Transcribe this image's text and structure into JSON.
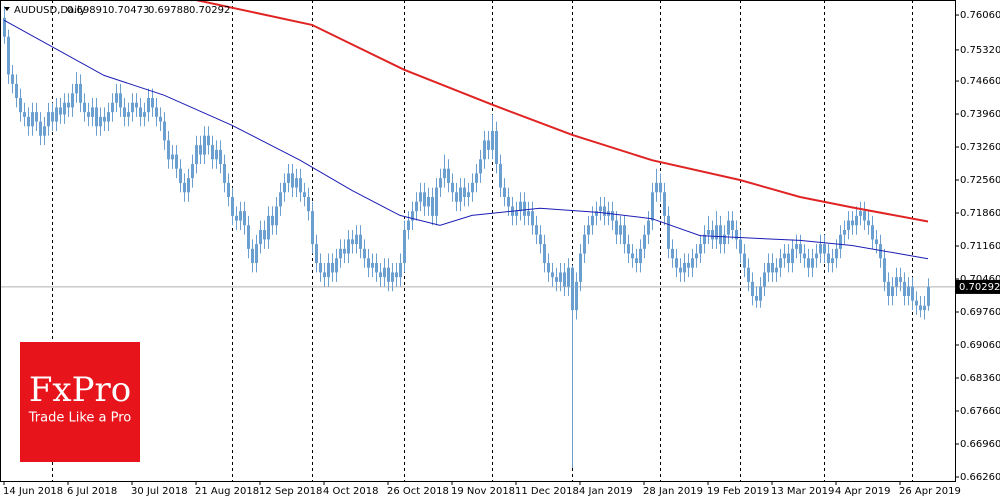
{
  "chart_data": {
    "type": "candlestick",
    "title": "AUDUSD,Daily",
    "color": "#6a9fd0",
    "xlim": [
      -1,
      237.75
    ],
    "ylim": [
      0.66175,
      0.76379
    ],
    "yticks": [
      {
        "value": 0.7606,
        "label": "0.76060"
      },
      {
        "value": 0.7532,
        "label": "0.75320"
      },
      {
        "value": 0.7466,
        "label": "0.74660"
      },
      {
        "value": 0.7396,
        "label": "0.73960"
      },
      {
        "value": 0.7326,
        "label": "0.73260"
      },
      {
        "value": 0.7256,
        "label": "0.72560"
      },
      {
        "value": 0.7186,
        "label": "0.71860"
      },
      {
        "value": 0.7116,
        "label": "0.71160"
      },
      {
        "value": 0.7046,
        "label": "0.70460"
      },
      {
        "value": 0.6976,
        "label": "0.69760"
      },
      {
        "value": 0.6906,
        "label": "0.69060"
      },
      {
        "value": 0.6836,
        "label": "0.68360"
      },
      {
        "value": 0.6766,
        "label": "0.67660"
      },
      {
        "value": 0.6696,
        "label": "0.66960"
      },
      {
        "value": 0.6626,
        "label": "0.66260"
      }
    ],
    "xticks": [
      {
        "value": 0,
        "label": "14 Jun 2018"
      },
      {
        "value": 16,
        "label": "6 Jul 2018"
      },
      {
        "value": 32,
        "label": "30 Jul 2018"
      },
      {
        "value": 48,
        "label": "21 Aug 2018"
      },
      {
        "value": 64,
        "label": "12 Sep 2018"
      },
      {
        "value": 80,
        "label": "4 Oct 2018"
      },
      {
        "value": 96,
        "label": "26 Oct 2018"
      },
      {
        "value": 112,
        "label": "19 Nov 2018"
      },
      {
        "value": 128,
        "label": "11 Dec 2018"
      },
      {
        "value": 144,
        "label": "4 Jan 2019"
      },
      {
        "value": 160,
        "label": "28 Jan 2019"
      },
      {
        "value": 176,
        "label": "19 Feb 2019"
      },
      {
        "value": 192,
        "label": "13 Mar 2019"
      },
      {
        "value": 208,
        "label": "4 Apr 2019"
      },
      {
        "value": 224,
        "label": "26 Apr 2019"
      }
    ],
    "vertical_lines": [
      12,
      57,
      77,
      100,
      122,
      142,
      164,
      184,
      205,
      227
    ],
    "open": [
      0.76,
      0.756,
      0.748,
      0.746,
      0.743,
      0.74,
      0.739,
      0.737,
      0.74,
      0.738,
      0.735,
      0.737,
      0.74,
      0.738,
      0.741,
      0.7395,
      0.742,
      0.741,
      0.744,
      0.746,
      0.742,
      0.74,
      0.739,
      0.741,
      0.737,
      0.739,
      0.738,
      0.74,
      0.742,
      0.744,
      0.741,
      0.739,
      0.74,
      0.742,
      0.741,
      0.739,
      0.74,
      0.743,
      0.741,
      0.739,
      0.738,
      0.734,
      0.73,
      0.731,
      0.728,
      0.725,
      0.723,
      0.726,
      0.729,
      0.733,
      0.731,
      0.735,
      0.733,
      0.73,
      0.732,
      0.729,
      0.725,
      0.722,
      0.718,
      0.717,
      0.719,
      0.716,
      0.711,
      0.708,
      0.712,
      0.715,
      0.713,
      0.718,
      0.716,
      0.72,
      0.723,
      0.725,
      0.727,
      0.724,
      0.726,
      0.723,
      0.722,
      0.719,
      0.712,
      0.708,
      0.706,
      0.705,
      0.708,
      0.706,
      0.709,
      0.711,
      0.71,
      0.713,
      0.712,
      0.714,
      0.711,
      0.709,
      0.707,
      0.708,
      0.706,
      0.705,
      0.707,
      0.704,
      0.706,
      0.705,
      0.708,
      0.715,
      0.717,
      0.719,
      0.721,
      0.723,
      0.72,
      0.722,
      0.718,
      0.724,
      0.726,
      0.728,
      0.725,
      0.723,
      0.721,
      0.724,
      0.722,
      0.723,
      0.725,
      0.727,
      0.73,
      0.734,
      0.732,
      0.736,
      0.729,
      0.724,
      0.722,
      0.72,
      0.718,
      0.719,
      0.721,
      0.718,
      0.719,
      0.716,
      0.714,
      0.712,
      0.708,
      0.706,
      0.705,
      0.704,
      0.706,
      0.703,
      0.707,
      0.698,
      0.704,
      0.71,
      0.714,
      0.716,
      0.718,
      0.719,
      0.72,
      0.718,
      0.719,
      0.717,
      0.714,
      0.716,
      0.712,
      0.71,
      0.709,
      0.708,
      0.711,
      0.714,
      0.717,
      0.723,
      0.725,
      0.723,
      0.718,
      0.711,
      0.709,
      0.707,
      0.706,
      0.708,
      0.707,
      0.709,
      0.71,
      0.712,
      0.714,
      0.715,
      0.713,
      0.716,
      0.712,
      0.714,
      0.717,
      0.715,
      0.713,
      0.71,
      0.707,
      0.704,
      0.701,
      0.7,
      0.703,
      0.706,
      0.708,
      0.706,
      0.707,
      0.709,
      0.71,
      0.708,
      0.711,
      0.712,
      0.71,
      0.709,
      0.707,
      0.709,
      0.71,
      0.712,
      0.71,
      0.708,
      0.709,
      0.711,
      0.714,
      0.715,
      0.717,
      0.716,
      0.718,
      0.719,
      0.717,
      0.716,
      0.713,
      0.712,
      0.709,
      0.704,
      0.701,
      0.703,
      0.705,
      0.704,
      0.701,
      0.703,
      0.7,
      0.699,
      0.698,
      0.69891
    ],
    "high": [
      0.7625,
      0.7575,
      0.75,
      0.748,
      0.745,
      0.742,
      0.741,
      0.742,
      0.742,
      0.74,
      0.739,
      0.742,
      0.742,
      0.743,
      0.743,
      0.744,
      0.744,
      0.746,
      0.7485,
      0.748,
      0.744,
      0.742,
      0.743,
      0.743,
      0.741,
      0.741,
      0.742,
      0.744,
      0.746,
      0.746,
      0.743,
      0.742,
      0.744,
      0.744,
      0.743,
      0.742,
      0.745,
      0.745,
      0.743,
      0.741,
      0.74,
      0.736,
      0.733,
      0.733,
      0.73,
      0.727,
      0.728,
      0.731,
      0.735,
      0.735,
      0.737,
      0.737,
      0.735,
      0.734,
      0.734,
      0.731,
      0.727,
      0.724,
      0.72,
      0.721,
      0.721,
      0.718,
      0.713,
      0.714,
      0.717,
      0.717,
      0.72,
      0.72,
      0.722,
      0.725,
      0.727,
      0.729,
      0.729,
      0.728,
      0.728,
      0.725,
      0.724,
      0.721,
      0.714,
      0.71,
      0.708,
      0.71,
      0.71,
      0.711,
      0.713,
      0.713,
      0.715,
      0.715,
      0.716,
      0.716,
      0.713,
      0.711,
      0.71,
      0.71,
      0.708,
      0.709,
      0.709,
      0.708,
      0.708,
      0.71,
      0.717,
      0.719,
      0.721,
      0.723,
      0.725,
      0.725,
      0.724,
      0.724,
      0.726,
      0.728,
      0.731,
      0.73,
      0.727,
      0.725,
      0.726,
      0.726,
      0.725,
      0.727,
      0.729,
      0.732,
      0.736,
      0.736,
      0.7395,
      0.738,
      0.731,
      0.726,
      0.724,
      0.722,
      0.721,
      0.723,
      0.723,
      0.721,
      0.721,
      0.718,
      0.716,
      0.714,
      0.71,
      0.708,
      0.707,
      0.708,
      0.708,
      0.709,
      0.7075,
      0.706,
      0.712,
      0.716,
      0.718,
      0.72,
      0.721,
      0.722,
      0.722,
      0.721,
      0.721,
      0.719,
      0.718,
      0.718,
      0.714,
      0.712,
      0.711,
      0.713,
      0.716,
      0.719,
      0.725,
      0.728,
      0.727,
      0.725,
      0.72,
      0.713,
      0.711,
      0.709,
      0.71,
      0.71,
      0.711,
      0.712,
      0.714,
      0.716,
      0.718,
      0.717,
      0.719,
      0.718,
      0.716,
      0.719,
      0.719,
      0.717,
      0.715,
      0.712,
      0.709,
      0.706,
      0.703,
      0.705,
      0.708,
      0.71,
      0.71,
      0.709,
      0.711,
      0.712,
      0.712,
      0.713,
      0.714,
      0.714,
      0.712,
      0.711,
      0.711,
      0.712,
      0.714,
      0.714,
      0.712,
      0.711,
      0.713,
      0.716,
      0.717,
      0.719,
      0.719,
      0.72,
      0.721,
      0.721,
      0.719,
      0.718,
      0.715,
      0.714,
      0.711,
      0.706,
      0.705,
      0.707,
      0.707,
      0.706,
      0.705,
      0.705,
      0.702,
      0.701,
      0.701,
      0.70473
    ],
    "low": [
      0.7545,
      0.746,
      0.744,
      0.741,
      0.738,
      0.737,
      0.735,
      0.735,
      0.736,
      0.733,
      0.733,
      0.735,
      0.736,
      0.736,
      0.7375,
      0.7375,
      0.739,
      0.739,
      0.742,
      0.74,
      0.738,
      0.737,
      0.737,
      0.735,
      0.735,
      0.736,
      0.736,
      0.738,
      0.74,
      0.739,
      0.737,
      0.737,
      0.738,
      0.739,
      0.737,
      0.737,
      0.738,
      0.739,
      0.737,
      0.736,
      0.732,
      0.728,
      0.728,
      0.726,
      0.723,
      0.721,
      0.721,
      0.724,
      0.727,
      0.729,
      0.729,
      0.731,
      0.728,
      0.728,
      0.727,
      0.723,
      0.72,
      0.716,
      0.715,
      0.715,
      0.714,
      0.709,
      0.706,
      0.706,
      0.71,
      0.711,
      0.711,
      0.714,
      0.714,
      0.718,
      0.721,
      0.723,
      0.722,
      0.722,
      0.721,
      0.72,
      0.717,
      0.71,
      0.706,
      0.704,
      0.703,
      0.703,
      0.704,
      0.704,
      0.707,
      0.708,
      0.708,
      0.71,
      0.71,
      0.709,
      0.707,
      0.705,
      0.705,
      0.704,
      0.703,
      0.703,
      0.702,
      0.702,
      0.703,
      0.703,
      0.706,
      0.713,
      0.715,
      0.717,
      0.719,
      0.718,
      0.718,
      0.716,
      0.716,
      0.722,
      0.724,
      0.723,
      0.721,
      0.719,
      0.719,
      0.72,
      0.72,
      0.721,
      0.723,
      0.725,
      0.728,
      0.73,
      0.73,
      0.727,
      0.722,
      0.72,
      0.718,
      0.716,
      0.716,
      0.717,
      0.716,
      0.716,
      0.714,
      0.712,
      0.71,
      0.706,
      0.704,
      0.703,
      0.702,
      0.702,
      0.701,
      0.701,
      0.6645,
      0.696,
      0.702,
      0.708,
      0.712,
      0.714,
      0.716,
      0.717,
      0.716,
      0.716,
      0.715,
      0.712,
      0.712,
      0.71,
      0.708,
      0.707,
      0.706,
      0.706,
      0.709,
      0.712,
      0.715,
      0.721,
      0.721,
      0.716,
      0.709,
      0.707,
      0.705,
      0.704,
      0.704,
      0.705,
      0.705,
      0.707,
      0.708,
      0.71,
      0.712,
      0.711,
      0.711,
      0.71,
      0.71,
      0.712,
      0.713,
      0.711,
      0.708,
      0.705,
      0.702,
      0.699,
      0.6985,
      0.6985,
      0.701,
      0.704,
      0.704,
      0.704,
      0.705,
      0.707,
      0.706,
      0.706,
      0.709,
      0.708,
      0.707,
      0.705,
      0.705,
      0.707,
      0.708,
      0.708,
      0.706,
      0.706,
      0.707,
      0.709,
      0.712,
      0.713,
      0.714,
      0.714,
      0.716,
      0.715,
      0.714,
      0.711,
      0.71,
      0.707,
      0.702,
      0.699,
      0.699,
      0.701,
      0.702,
      0.699,
      0.699,
      0.698,
      0.697,
      0.6965,
      0.696,
      0.69788
    ],
    "close": [
      0.756,
      0.748,
      0.746,
      0.743,
      0.74,
      0.739,
      0.737,
      0.74,
      0.738,
      0.735,
      0.737,
      0.74,
      0.738,
      0.741,
      0.7395,
      0.742,
      0.741,
      0.744,
      0.746,
      0.742,
      0.74,
      0.739,
      0.741,
      0.737,
      0.739,
      0.738,
      0.74,
      0.742,
      0.744,
      0.741,
      0.739,
      0.74,
      0.742,
      0.741,
      0.739,
      0.74,
      0.743,
      0.741,
      0.739,
      0.738,
      0.734,
      0.73,
      0.731,
      0.728,
      0.725,
      0.723,
      0.726,
      0.729,
      0.733,
      0.731,
      0.735,
      0.733,
      0.73,
      0.732,
      0.729,
      0.725,
      0.722,
      0.718,
      0.717,
      0.719,
      0.716,
      0.711,
      0.708,
      0.712,
      0.715,
      0.713,
      0.718,
      0.716,
      0.72,
      0.723,
      0.725,
      0.727,
      0.724,
      0.726,
      0.723,
      0.722,
      0.719,
      0.712,
      0.708,
      0.706,
      0.705,
      0.708,
      0.706,
      0.709,
      0.711,
      0.71,
      0.713,
      0.712,
      0.714,
      0.711,
      0.709,
      0.707,
      0.708,
      0.706,
      0.705,
      0.707,
      0.704,
      0.706,
      0.705,
      0.708,
      0.715,
      0.717,
      0.719,
      0.721,
      0.723,
      0.72,
      0.722,
      0.718,
      0.724,
      0.726,
      0.728,
      0.725,
      0.723,
      0.721,
      0.724,
      0.722,
      0.723,
      0.725,
      0.727,
      0.73,
      0.734,
      0.732,
      0.736,
      0.729,
      0.724,
      0.722,
      0.72,
      0.718,
      0.719,
      0.721,
      0.718,
      0.719,
      0.716,
      0.714,
      0.712,
      0.708,
      0.706,
      0.705,
      0.704,
      0.706,
      0.703,
      0.707,
      0.698,
      0.704,
      0.71,
      0.714,
      0.716,
      0.718,
      0.719,
      0.72,
      0.718,
      0.719,
      0.717,
      0.714,
      0.716,
      0.712,
      0.71,
      0.709,
      0.708,
      0.711,
      0.714,
      0.717,
      0.723,
      0.725,
      0.723,
      0.718,
      0.711,
      0.709,
      0.707,
      0.706,
      0.708,
      0.707,
      0.709,
      0.71,
      0.712,
      0.714,
      0.715,
      0.713,
      0.716,
      0.712,
      0.714,
      0.717,
      0.715,
      0.713,
      0.71,
      0.707,
      0.704,
      0.701,
      0.7,
      0.703,
      0.706,
      0.708,
      0.706,
      0.707,
      0.709,
      0.71,
      0.708,
      0.711,
      0.712,
      0.71,
      0.709,
      0.707,
      0.709,
      0.71,
      0.712,
      0.71,
      0.708,
      0.709,
      0.711,
      0.714,
      0.715,
      0.717,
      0.716,
      0.718,
      0.719,
      0.717,
      0.716,
      0.713,
      0.712,
      0.709,
      0.704,
      0.701,
      0.703,
      0.705,
      0.704,
      0.701,
      0.703,
      0.7,
      0.699,
      0.698,
      0.69891,
      0.70292
    ],
    "series": [
      {
        "color": "#1c1cb4",
        "x": [
          0,
          25,
          40,
          57,
          74,
          87,
          99,
          109,
          117,
          134,
          149,
          162,
          174,
          189,
          199,
          212,
          231
        ],
        "values": [
          0.7595,
          0.7478,
          0.7436,
          0.7372,
          0.7298,
          0.7234,
          0.7181,
          0.716,
          0.7181,
          0.7196,
          0.7187,
          0.7174,
          0.7138,
          0.7132,
          0.7128,
          0.7117,
          0.7089
        ]
      },
      {
        "color": "#e02424",
        "x": [
          48,
          77,
          100,
          122,
          142,
          162,
          184,
          199,
          212,
          231
        ],
        "values": [
          0.7638,
          0.7585,
          0.749,
          0.7416,
          0.7352,
          0.7298,
          0.7256,
          0.722,
          0.7198,
          0.7168
        ]
      }
    ]
  },
  "logo": {
    "brand": "FxPro",
    "tagline": "Trade Like a Pro"
  }
}
